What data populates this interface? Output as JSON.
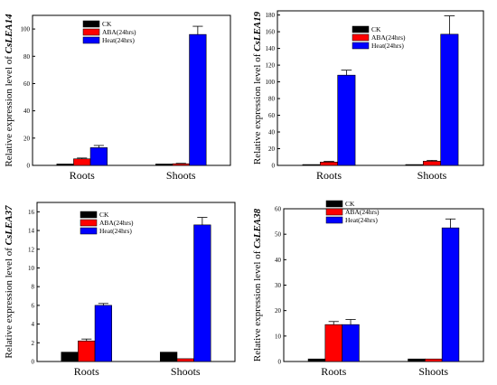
{
  "chart_data": [
    {
      "type": "bar",
      "ylabel_prefix": "Relative expression level of ",
      "gene": "CsLEA14",
      "categories": [
        "Roots",
        "Shoots"
      ],
      "series": [
        {
          "name": "CK",
          "color": "#000000",
          "values": [
            1,
            1
          ],
          "errors": [
            0,
            0
          ]
        },
        {
          "name": "ABA(24hrs)",
          "color": "#ff0000",
          "values": [
            4.8,
            1.2
          ],
          "errors": [
            0.6,
            0.3
          ]
        },
        {
          "name": "Heat(24hrs)",
          "color": "#0000ff",
          "values": [
            13,
            96
          ],
          "errors": [
            1.6,
            6
          ]
        }
      ],
      "yticks": [
        0,
        20,
        40,
        60,
        80,
        100
      ],
      "ylim": [
        0,
        110
      ],
      "legend": "top-right"
    },
    {
      "type": "bar",
      "ylabel_prefix": "Relative expression level of ",
      "gene": "CsLEA19",
      "categories": [
        "Roots",
        "Shoots"
      ],
      "series": [
        {
          "name": "CK",
          "color": "#000000",
          "values": [
            1,
            1
          ],
          "errors": [
            0,
            0
          ]
        },
        {
          "name": "ABA(24hrs)",
          "color": "#ff0000",
          "values": [
            4,
            5
          ],
          "errors": [
            0.8,
            1
          ]
        },
        {
          "name": "Heat(24hrs)",
          "color": "#0000ff",
          "values": [
            108,
            157
          ],
          "errors": [
            6,
            22
          ]
        }
      ],
      "yticks": [
        0,
        20,
        40,
        60,
        80,
        100,
        120,
        140,
        160,
        180
      ],
      "ylim": [
        0,
        185
      ],
      "legend": "top-left"
    },
    {
      "type": "bar",
      "ylabel_prefix": "Relative expression level of ",
      "gene": "CsLEA37",
      "categories": [
        "Roots",
        "Shoots"
      ],
      "series": [
        {
          "name": "CK",
          "color": "#000000",
          "values": [
            1,
            1
          ],
          "errors": [
            0,
            0
          ]
        },
        {
          "name": "ABA(24hrs)",
          "color": "#ff0000",
          "values": [
            2.2,
            0.3
          ],
          "errors": [
            0.2,
            0
          ]
        },
        {
          "name": "Heat(24hrs)",
          "color": "#0000ff",
          "values": [
            6,
            14.6
          ],
          "errors": [
            0.2,
            0.8
          ]
        }
      ],
      "yticks": [
        0,
        2,
        4,
        6,
        8,
        10,
        12,
        14,
        16
      ],
      "ylim": [
        0,
        17
      ],
      "legend": "top-right"
    },
    {
      "type": "bar",
      "ylabel_prefix": "Relative expression level of ",
      "gene": "CsLEA38",
      "categories": [
        "Roots",
        "Shoots"
      ],
      "series": [
        {
          "name": "CK",
          "color": "#000000",
          "values": [
            1,
            1
          ],
          "errors": [
            0,
            0
          ]
        },
        {
          "name": "ABA(24hrs)",
          "color": "#ff0000",
          "values": [
            14.5,
            1
          ],
          "errors": [
            1.2,
            0
          ]
        },
        {
          "name": "Heat(24hrs)",
          "color": "#0000ff",
          "values": [
            14.5,
            52.5
          ],
          "errors": [
            2,
            3.5
          ]
        }
      ],
      "yticks": [
        0,
        10,
        20,
        30,
        40,
        50,
        60
      ],
      "ylim": [
        0,
        60
      ],
      "legend": "top-left"
    }
  ]
}
